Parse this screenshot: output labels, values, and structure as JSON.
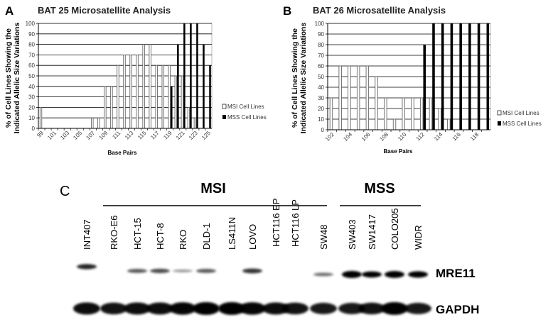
{
  "chart_data": [
    {
      "type": "bar",
      "panel": "A",
      "title": "BAT 25 Microsatellite Analysis",
      "xlabel": "Base Pairs",
      "ylabel": [
        "% of Cell Lines Showing the",
        "Indicated Allelic Size Variations"
      ],
      "ylim": [
        0,
        100
      ],
      "yticks": [
        0,
        10,
        20,
        30,
        40,
        50,
        60,
        70,
        80,
        90,
        100
      ],
      "grid": true,
      "legend_placement": "right",
      "categories": [
        99,
        100,
        101,
        102,
        103,
        104,
        105,
        106,
        107,
        108,
        109,
        110,
        111,
        112,
        113,
        114,
        115,
        116,
        117,
        118,
        119,
        120,
        121,
        122,
        123,
        124,
        125
      ],
      "xtick_labels": [
        "99",
        "101",
        "103",
        "105",
        "107",
        "109",
        "111",
        "113",
        "115",
        "117",
        "119",
        "121",
        "123",
        "125"
      ],
      "series": [
        {
          "name": "MSI Cell Lines",
          "color": "#ffffff",
          "values": [
            20,
            0,
            0,
            0,
            0,
            0,
            0,
            0,
            10,
            10,
            40,
            40,
            60,
            70,
            70,
            70,
            80,
            80,
            60,
            60,
            60,
            50,
            50,
            20,
            10,
            0,
            0
          ]
        },
        {
          "name": "MSS Cell Lines",
          "color": "#000000",
          "values": [
            0,
            0,
            0,
            0,
            0,
            0,
            0,
            0,
            0,
            0,
            0,
            0,
            0,
            0,
            0,
            0,
            0,
            0,
            0,
            0,
            40,
            80,
            100,
            100,
            100,
            80,
            60
          ]
        }
      ]
    },
    {
      "type": "bar",
      "panel": "B",
      "title": "BAT 26 Microsatellite Analysis",
      "xlabel": "Base Pairs",
      "ylabel": [
        "% of Cell Lines Showing the",
        "Indicated Allelic Size Variations"
      ],
      "ylim": [
        0,
        100
      ],
      "yticks": [
        0,
        10,
        20,
        30,
        40,
        50,
        60,
        70,
        80,
        90,
        100
      ],
      "grid": true,
      "legend_placement": "right",
      "categories": [
        102,
        103,
        104,
        105,
        106,
        107,
        108,
        109,
        110,
        111,
        112,
        113,
        114,
        115,
        116,
        117,
        118,
        119
      ],
      "xtick_labels": [
        "102",
        "104",
        "106",
        "108",
        "110",
        "112",
        "114",
        "116",
        "118"
      ],
      "series": [
        {
          "name": "MSI Cell Lines",
          "color": "#ffffff",
          "values": [
            30,
            60,
            60,
            60,
            60,
            50,
            30,
            10,
            30,
            30,
            30,
            30,
            20,
            10,
            0,
            0,
            0,
            0
          ]
        },
        {
          "name": "MSS Cell Lines",
          "color": "#000000",
          "values": [
            0,
            0,
            0,
            0,
            0,
            0,
            0,
            0,
            0,
            0,
            80,
            100,
            100,
            100,
            100,
            100,
            100,
            100
          ]
        }
      ]
    }
  ],
  "blot": {
    "panel": "C",
    "groups": [
      {
        "label": "MSI"
      },
      {
        "label": "MSS"
      }
    ],
    "proteins": [
      "MRE11",
      "GAPDH"
    ],
    "lanes": [
      {
        "label": "INT407",
        "mre11": 0.6,
        "gapdh": 0.9
      },
      {
        "label": "RKO-E6",
        "mre11": 0.0,
        "gapdh": 0.85
      },
      {
        "label": "HCT-15",
        "mre11": 0.4,
        "gapdh": 0.9
      },
      {
        "label": "HCT-8",
        "mre11": 0.45,
        "gapdh": 0.9
      },
      {
        "label": "RKO",
        "mre11": 0.15,
        "gapdh": 0.95
      },
      {
        "label": "DLD-1",
        "mre11": 0.4,
        "gapdh": 1.0
      },
      {
        "label": "LS411N",
        "mre11": 0.0,
        "gapdh": 1.0
      },
      {
        "label": "LOVO",
        "mre11": 0.55,
        "gapdh": 0.95
      },
      {
        "label": "HCT116 EP",
        "mre11": 0.0,
        "gapdh": 0.9
      },
      {
        "label": "HCT116 LP",
        "mre11": 0.0,
        "gapdh": 0.85
      },
      {
        "label": "SW48",
        "mre11": 0.3,
        "gapdh": 0.8
      },
      {
        "label": "SW403",
        "mre11": 1.0,
        "gapdh": 0.8
      },
      {
        "label": "SW1417",
        "mre11": 0.8,
        "gapdh": 0.85
      },
      {
        "label": "COLO205",
        "mre11": 0.95,
        "gapdh": 1.0
      },
      {
        "label": "WIDR",
        "mre11": 0.85,
        "gapdh": 0.8
      }
    ]
  }
}
